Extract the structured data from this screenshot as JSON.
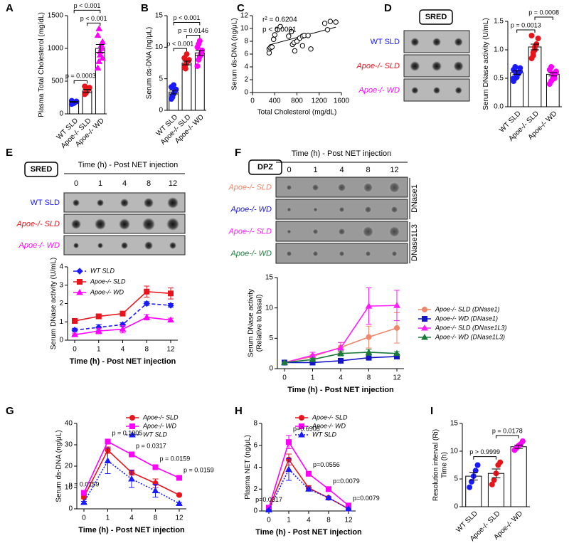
{
  "chart_data": [
    {
      "type": "bar",
      "panel": "A",
      "ylabel": "Plasma Total Cholesterol (mg/dL)",
      "categories": [
        "WT SLD",
        "Apoe-/- SLD",
        "Apoe-/- WD"
      ],
      "values": [
        180,
        350,
        1000
      ],
      "errors": [
        10,
        25,
        60
      ],
      "colors": [
        "#1a1aff",
        "#e8141c",
        "#ff00ff"
      ],
      "points": [
        [
          150,
          160,
          170,
          180,
          190,
          200,
          175,
          165
        ],
        [
          300,
          320,
          350,
          380,
          400,
          420,
          340
        ],
        [
          700,
          800,
          900,
          1000,
          1100,
          1200,
          1300,
          950,
          1050,
          850
        ]
      ],
      "ylim": [
        0,
        1500
      ],
      "yticks": [
        0,
        500,
        1000,
        1500
      ],
      "brackets": [
        {
          "pair": [
            0,
            1
          ],
          "label": "p = 0.0003"
        },
        {
          "pair": [
            1,
            2
          ],
          "label": "p < 0.001"
        },
        {
          "pair": [
            0,
            2
          ],
          "label": "p < 0.001"
        }
      ]
    },
    {
      "type": "bar",
      "panel": "B",
      "ylabel": "Serum ds-DNA (ng/μL)",
      "categories": [
        "WT SLD",
        "Apoe-/- SLD",
        "Apoe-/- WD"
      ],
      "values": [
        2.9,
        7.5,
        9.1
      ],
      "errors": [
        0.3,
        0.3,
        0.4
      ],
      "colors": [
        "#1a1aff",
        "#e8141c",
        "#ff00ff"
      ],
      "points": [
        [
          1.8,
          2.3,
          2.6,
          3.0,
          3.3,
          3.7,
          2.1,
          4.0
        ],
        [
          6.8,
          7.2,
          7.5,
          7.8,
          8.0,
          8.3,
          6.6,
          8.9
        ],
        [
          7.0,
          8.0,
          8.5,
          9.0,
          9.5,
          10.0,
          10.5,
          11.0,
          8.8
        ]
      ],
      "ylim": [
        0,
        15
      ],
      "yticks": [
        0,
        5,
        10,
        15
      ],
      "brackets": [
        {
          "pair": [
            0,
            1
          ],
          "label": "p < 0.001"
        },
        {
          "pair": [
            1,
            2
          ],
          "label": "p = 0.0146"
        },
        {
          "pair": [
            0,
            2
          ],
          "label": "p < 0.001"
        }
      ]
    },
    {
      "type": "scatter",
      "panel": "C",
      "xlabel": "Total Cholesterol (mg/dL)",
      "ylabel": "Serum ds-DNA (ng/μL)",
      "annotations": [
        "r² = 0.6204",
        "p < 0.0001"
      ],
      "x": [
        300,
        300,
        320,
        350,
        380,
        400,
        450,
        500,
        650,
        700,
        720,
        750,
        760,
        800,
        850,
        900,
        900,
        930,
        1000,
        1050,
        1300,
        1400,
        1500,
        1350
      ],
      "y": [
        6.2,
        6.8,
        7.0,
        7.1,
        8.3,
        9.0,
        9.8,
        10.3,
        8.8,
        9.5,
        7.5,
        7.8,
        6.5,
        8.0,
        8.5,
        8.8,
        7.3,
        8.9,
        8.9,
        6.8,
        10.8,
        11.1,
        11.0,
        9.8
      ],
      "xlim": [
        0,
        1600
      ],
      "xticks": [
        0,
        400,
        800,
        1200,
        1600
      ],
      "ylim": [
        0,
        12
      ],
      "yticks": [
        0,
        2,
        4,
        6,
        8,
        10,
        12
      ]
    },
    {
      "type": "bar",
      "panel": "D",
      "ylabel": "Serum DNase activity (U/mL)",
      "categories": [
        "WT SLD",
        "Apoe-/- SLD",
        "Apoe-/- WD"
      ],
      "values": [
        0.6,
        1.05,
        0.57
      ],
      "errors": [
        0.03,
        0.05,
        0.03
      ],
      "colors": [
        "#1a1aff",
        "#e8141c",
        "#ff00ff"
      ],
      "points": [
        [
          0.45,
          0.5,
          0.55,
          0.6,
          0.62,
          0.65,
          0.7,
          0.52,
          0.58,
          0.68,
          0.5,
          0.62
        ],
        [
          0.85,
          0.9,
          1.0,
          1.1,
          1.2,
          1.25,
          0.95,
          1.05
        ],
        [
          0.4,
          0.45,
          0.5,
          0.55,
          0.6,
          0.65,
          0.7,
          0.58,
          0.5,
          0.62
        ]
      ],
      "ylim": [
        0,
        1.5
      ],
      "yticks": [
        {
          "value": 0,
          "label": "0.0"
        },
        {
          "value": 0.5,
          "label": "0.5"
        },
        {
          "value": 1,
          "label": "1.0"
        },
        {
          "value": 1.5,
          "label": "1.5"
        }
      ],
      "brackets": [
        {
          "pair": [
            0,
            1
          ],
          "label": "p = 0.0013"
        },
        {
          "pair": [
            1,
            2
          ],
          "label": "p = 0.0008"
        }
      ]
    },
    {
      "type": "line",
      "panel": "E",
      "xlabel": "Time (h) - Post NET injection",
      "ylabel": "Serum DNase activity (U/mL)",
      "categories": [
        "0",
        "1",
        "4",
        "8",
        "12"
      ],
      "legend": "upper left",
      "ylim": [
        0,
        4
      ],
      "yticks": [
        0,
        1,
        2,
        3,
        4
      ],
      "series": [
        {
          "name": "WT SLD",
          "color": "#1a1aff",
          "marker": "diamond",
          "dash": "dashed",
          "values": [
            0.55,
            0.7,
            0.85,
            2.0,
            1.9
          ],
          "errors": [
            0.1,
            0.15,
            0.1,
            0.1,
            0.1
          ]
        },
        {
          "name": "Apoe-/- SLD",
          "color": "#e8141c",
          "marker": "square",
          "dash": "solid",
          "values": [
            1.05,
            1.3,
            1.45,
            2.65,
            2.55
          ],
          "errors": [
            0.1,
            0.1,
            0.08,
            0.3,
            0.3
          ]
        },
        {
          "name": "Apoe-/- WD",
          "color": "#ff00ff",
          "marker": "triangle",
          "dash": "solid",
          "values": [
            0.3,
            0.5,
            0.6,
            1.25,
            1.1
          ],
          "errors": [
            0.05,
            0.15,
            0.2,
            0.15,
            0.1
          ]
        }
      ]
    },
    {
      "type": "line",
      "panel": "F",
      "xlabel": "Time (h) - Post NET injection",
      "ylabel": [
        "Serum DNase activity",
        "(Relative to basal)"
      ],
      "categories": [
        "0",
        "1",
        "4",
        "8",
        "12"
      ],
      "legend": "right",
      "ylim": [
        0,
        15
      ],
      "yticks": [
        0,
        5,
        10,
        15
      ],
      "series": [
        {
          "name": "Apoe-/- SLD  (DNase1)",
          "color": "#f0866a",
          "marker": "circle",
          "dash": "solid",
          "values": [
            1,
            2,
            3.5,
            5.2,
            6.7
          ],
          "errors": [
            0.1,
            0.3,
            0.8,
            1.8,
            2.5
          ]
        },
        {
          "name": "Apoe-/- WD  (DNase1)",
          "color": "#1515c8",
          "marker": "square",
          "dash": "solid",
          "values": [
            1,
            1,
            1.3,
            1.8,
            2.0
          ],
          "errors": [
            0.05,
            0.1,
            0.2,
            0.4,
            0.4
          ]
        },
        {
          "name": "Apoe-/- SLD  (DNase1L3)",
          "color": "#ff1aff",
          "marker": "triangle",
          "dash": "solid",
          "values": [
            1,
            2.2,
            3.4,
            10.3,
            10.4
          ],
          "errors": [
            0.1,
            0.5,
            0.9,
            3.0,
            2.5
          ]
        },
        {
          "name": "Apoe-/- WD  (DNase1L3)",
          "color": "#1a7a3a",
          "marker": "triangle",
          "dash": "solid",
          "values": [
            1,
            1.5,
            2.5,
            2.7,
            2.5
          ],
          "errors": [
            0.05,
            0.2,
            0.4,
            0.5,
            0.3
          ]
        }
      ]
    },
    {
      "type": "line",
      "panel": "G",
      "xlabel": "Time (h) - Post NET injection",
      "ylabel": "Serum ds-DNA (ng/μL)",
      "categories": [
        "0",
        "1",
        "4",
        "8",
        "12"
      ],
      "legend": "upper right",
      "ylim": [
        0,
        40
      ],
      "yticks": [
        0,
        10,
        20,
        30,
        40
      ],
      "point_labels": [
        "p = 0.0159",
        "p = 0.1905",
        "p = 0.0317",
        "p = 0.0159",
        "p = 0.0159"
      ],
      "series": [
        {
          "name": "Apoe-/- SLD",
          "color": "#e8141c",
          "marker": "circle",
          "dash": "solid",
          "values": [
            5.5,
            27.5,
            17,
            12,
            6.5
          ],
          "errors": [
            0.8,
            1.5,
            1.2,
            2,
            0.5
          ]
        },
        {
          "name": "Apoe-/- WD",
          "color": "#ff00ff",
          "marker": "square",
          "dash": "solid",
          "values": [
            7.5,
            31.5,
            25.5,
            19.5,
            14.5
          ],
          "errors": [
            0.8,
            0.8,
            0.8,
            0.8,
            0.5
          ]
        },
        {
          "name": "WT SLD",
          "color": "#1a1aff",
          "marker": "triangle",
          "dash": "dotted",
          "values": [
            3,
            22.5,
            14,
            8.5,
            2.5
          ],
          "errors": [
            0.5,
            6,
            4,
            3,
            0.5
          ]
        }
      ]
    },
    {
      "type": "line",
      "panel": "H",
      "xlabel": "Time (h) - Post NET injection",
      "ylabel": "Plasma NET (ng/μL)",
      "categories": [
        "0",
        "1",
        "4",
        "8",
        "12"
      ],
      "legend": "upper right",
      "ylim": [
        0,
        8
      ],
      "yticks": [
        0,
        2,
        4,
        6,
        8
      ],
      "point_labels": [
        "p=0.0317",
        "p=0.6905",
        "p=0.0556",
        "p=0.0079",
        "p=0.0079"
      ],
      "series": [
        {
          "name": "Apoe-/- SLD",
          "color": "#e8141c",
          "marker": "circle",
          "dash": "solid",
          "values": [
            0.2,
            4.7,
            2.1,
            1.2,
            0.2
          ],
          "errors": [
            0.1,
            0.5,
            0.2,
            0.1,
            0.05
          ]
        },
        {
          "name": "Apoe-/- WD",
          "color": "#ff00ff",
          "marker": "square",
          "dash": "solid",
          "values": [
            0.3,
            6.3,
            3.4,
            2.0,
            0.5
          ],
          "errors": [
            0.1,
            0.6,
            0.2,
            0.1,
            0.05
          ]
        },
        {
          "name": "WT SLD",
          "color": "#1a1aff",
          "marker": "triangle",
          "dash": "dotted",
          "values": [
            0.1,
            3.8,
            2.0,
            1.2,
            0.2
          ],
          "errors": [
            0.05,
            1.0,
            0.1,
            0.1,
            0.05
          ]
        }
      ]
    },
    {
      "type": "bar",
      "panel": "I",
      "ylabel": [
        "Resolution interval (Ri)",
        "Time (h)"
      ],
      "categories": [
        "WT SLD",
        "Apoe-/- SLD",
        "Apoe-/- WD"
      ],
      "values": [
        5.5,
        6.0,
        10.8
      ],
      "errors": [
        0.7,
        0.8,
        0.3
      ],
      "colors": [
        "#1a1aff",
        "#e8141c",
        "#ff00ff"
      ],
      "points": [
        [
          3.5,
          4.5,
          5.5,
          6.5,
          7.5
        ],
        [
          4,
          4.8,
          6.0,
          7.5,
          8.0
        ],
        [
          10.2,
          10.6,
          11.0,
          11.3,
          11.8
        ]
      ],
      "ylim": [
        0,
        15
      ],
      "yticks": [
        0,
        5,
        10,
        15
      ],
      "brackets": [
        {
          "pair": [
            0,
            1
          ],
          "label": "p > 0.9999"
        },
        {
          "pair": [
            1,
            2
          ],
          "label": "p = 0.0178"
        }
      ]
    }
  ],
  "gels": [
    {
      "tag": "SRED",
      "rows": [
        "WT SLD",
        "Apoe-/- SLD",
        "Apoe-/- WD"
      ],
      "row_colors": [
        "#1a1aff",
        "#e8141c",
        "#ff00ff"
      ]
    },
    {
      "tag": "SRED",
      "header": "Time (h) - Post NET injection",
      "columns": [
        "0",
        "1",
        "4",
        "8",
        "12"
      ],
      "rows": [
        "WT SLD",
        "Apoe-/- SLD",
        "Apoe-/- WD"
      ],
      "row_colors": [
        "#1a1aff",
        "#e8141c",
        "#ff00ff"
      ]
    },
    {
      "tag": "DPZ",
      "header": "Time (h) - Post NET injection",
      "columns": [
        "0",
        "1",
        "4",
        "8",
        "12"
      ],
      "rows": [
        "Apoe-/- SLD",
        "Apoe-/- WD",
        "Apoe-/- SLD",
        "Apoe-/- WD"
      ],
      "row_colors": [
        "#f0866a",
        "#1515c8",
        "#ff1aff",
        "#1a7a3a"
      ],
      "groups": [
        "DNase1",
        "DNase1L3"
      ]
    }
  ]
}
